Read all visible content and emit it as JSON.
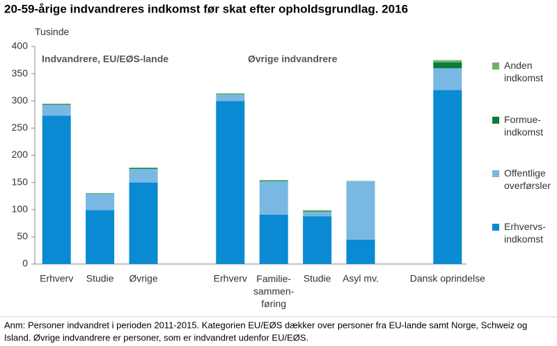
{
  "chart_data": {
    "type": "stacked-bar",
    "title": "20-59-årige indvandreres indkomst før skat efter opholdsgrundlag. 2016",
    "y_unit_label": "Tusinde",
    "group_labels": [
      "Indvandrere, EU/EØS-lande",
      "Øvrige indvandrere"
    ],
    "categories": [
      "Erhverv",
      "Studie",
      "Øvrige",
      null,
      "Erhverv",
      "Familie-\nsammen-\nføring",
      "Studie",
      "Asyl mv.",
      null,
      "Dansk oprindelse"
    ],
    "series": [
      {
        "name": "Erhvervs-\nindkomst",
        "color": "#0a8ad2",
        "values": [
          273,
          99,
          150,
          null,
          300,
          91,
          88,
          45,
          null,
          320
        ]
      },
      {
        "name": "Offentlige\noverførsler",
        "color": "#7ab8e4",
        "values": [
          20,
          30,
          25,
          null,
          12,
          61,
          8,
          107,
          null,
          40
        ]
      },
      {
        "name": "Formue-\nindkomst",
        "color": "#0b7b3b",
        "values": [
          1,
          0.5,
          1.5,
          null,
          0.5,
          1,
          1,
          0.3,
          null,
          11
        ]
      },
      {
        "name": "Anden\nindkomst",
        "color": "#6ab46a",
        "values": [
          1,
          1,
          1,
          null,
          1.5,
          1.5,
          2,
          0.5,
          null,
          4
        ]
      }
    ],
    "ylim": [
      0,
      400
    ],
    "yticks": [
      0,
      50,
      100,
      150,
      200,
      250,
      300,
      350,
      400
    ],
    "note": [
      "Anm: Personer indvandret i perioden 2011-2015. Kategorien EU/EØS dækker over personer fra EU-lande samt Norge, Schweiz og",
      "Island. Øvrige indvandrere er personer, som er indvandret udenfor EU/EØS."
    ]
  }
}
